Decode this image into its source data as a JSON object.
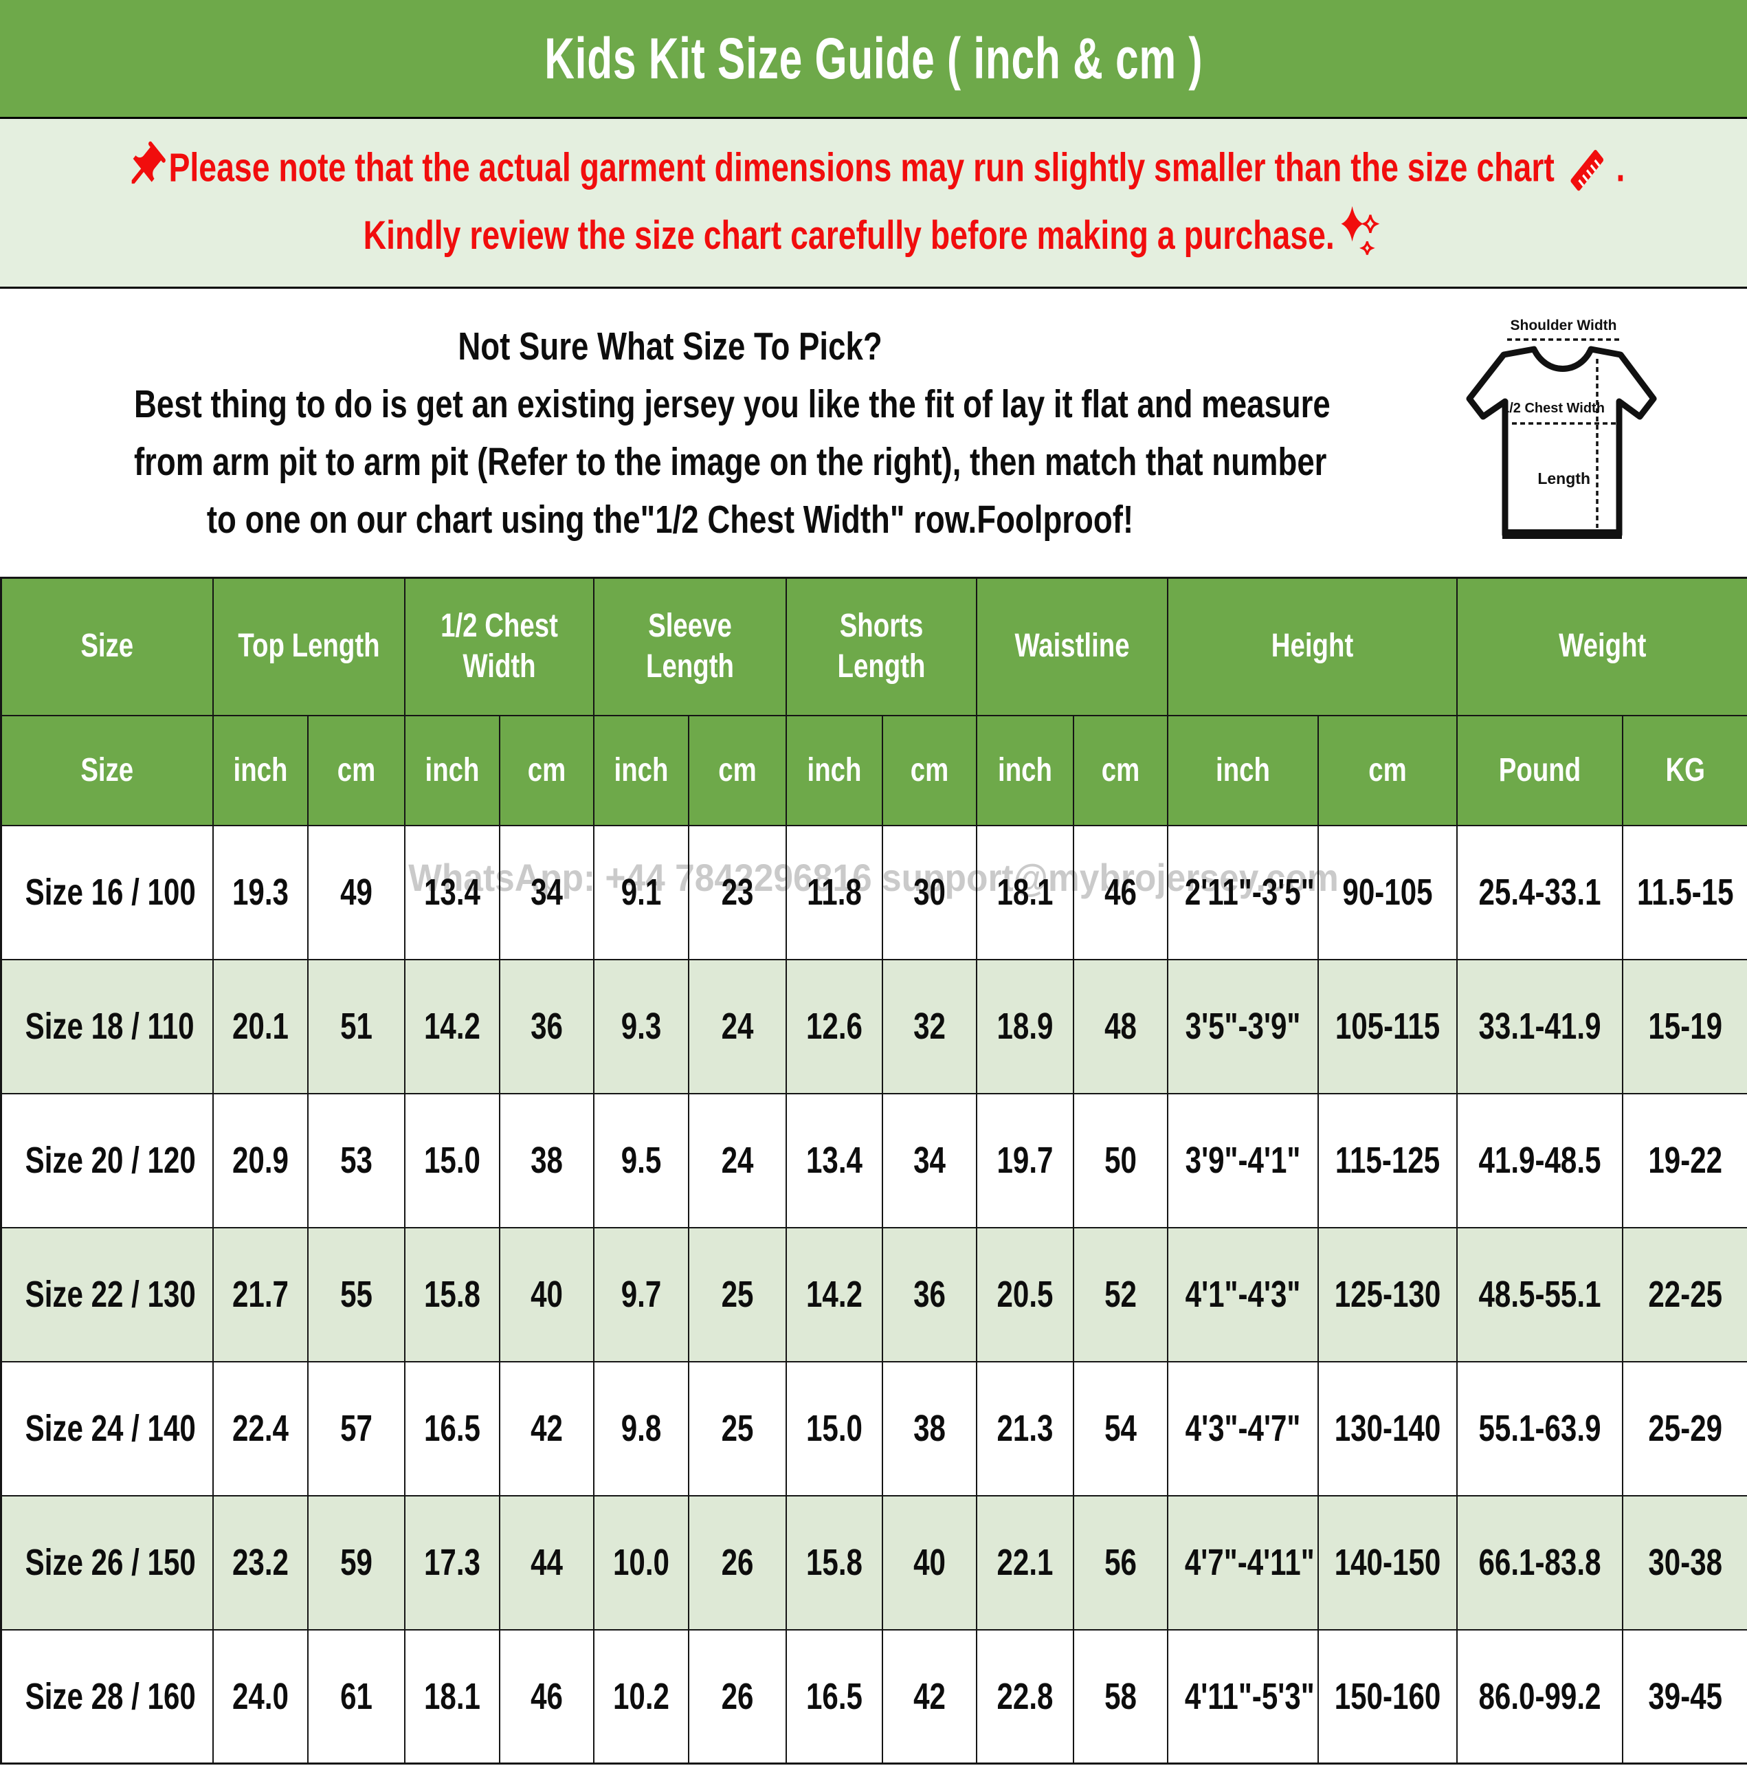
{
  "title": "Kids Kit Size Guide ( inch & cm )",
  "notice": {
    "line1": "Please note that the actual garment dimensions may run slightly smaller than the size chart",
    "line1_period": ".",
    "line2": "Kindly review the size chart carefully before making a purchase."
  },
  "sizing_help": {
    "line1": "Not Sure What Size To Pick?",
    "line2": "Best thing to do is get an existing jersey you like the fit of lay it flat and measure",
    "line3": "from arm pit to arm pit (Refer to the image on the right), then match that number",
    "line4": "to one on our chart using the\"1/2 Chest Width\" row.Foolproof!"
  },
  "diagram": {
    "shoulder_label": "Shoulder Width",
    "chest_label": "1/2 Chest Width",
    "length_label": "Length"
  },
  "watermark": "WhatsApp: +44 7842296816  support@mybrojersey.com",
  "table": {
    "groups": [
      "Size",
      "Top Length",
      "1/2 Chest Width",
      "Sleeve Length",
      "Shorts Length",
      "Waistline",
      "Height",
      "Weight"
    ],
    "units": [
      "Size",
      "inch",
      "cm",
      "inch",
      "cm",
      "inch",
      "cm",
      "inch",
      "cm",
      "inch",
      "cm",
      "inch",
      "cm",
      "Pound",
      "KG"
    ],
    "rows": [
      [
        "Size 16 / 100",
        "19.3",
        "49",
        "13.4",
        "34",
        "9.1",
        "23",
        "11.8",
        "30",
        "18.1",
        "46",
        "2'11\"-3'5\"",
        "90-105",
        "25.4-33.1",
        "11.5-15"
      ],
      [
        "Size 18 / 110",
        "20.1",
        "51",
        "14.2",
        "36",
        "9.3",
        "24",
        "12.6",
        "32",
        "18.9",
        "48",
        "3'5\"-3'9\"",
        "105-115",
        "33.1-41.9",
        "15-19"
      ],
      [
        "Size 20 / 120",
        "20.9",
        "53",
        "15.0",
        "38",
        "9.5",
        "24",
        "13.4",
        "34",
        "19.7",
        "50",
        "3'9\"-4'1\"",
        "115-125",
        "41.9-48.5",
        "19-22"
      ],
      [
        "Size 22 / 130",
        "21.7",
        "55",
        "15.8",
        "40",
        "9.7",
        "25",
        "14.2",
        "36",
        "20.5",
        "52",
        "4'1\"-4'3\"",
        "125-130",
        "48.5-55.1",
        "22-25"
      ],
      [
        "Size 24 / 140",
        "22.4",
        "57",
        "16.5",
        "42",
        "9.8",
        "25",
        "15.0",
        "38",
        "21.3",
        "54",
        "4'3\"-4'7\"",
        "130-140",
        "55.1-63.9",
        "25-29"
      ],
      [
        "Size 26 / 150",
        "23.2",
        "59",
        "17.3",
        "44",
        "10.0",
        "26",
        "15.8",
        "40",
        "22.1",
        "56",
        "4'7\"-4'11\"",
        "140-150",
        "66.1-83.8",
        "30-38"
      ],
      [
        "Size 28 / 160",
        "24.0",
        "61",
        "18.1",
        "46",
        "10.2",
        "26",
        "16.5",
        "42",
        "22.8",
        "58",
        "4'11\"-5'3\"",
        "150-160",
        "86.0-99.2",
        "39-45"
      ]
    ]
  },
  "colors": {
    "header_green": "#6ea94a",
    "notice_green": "#e4efdf",
    "row_green": "#dee9d6",
    "accent_red": "#f10d0d",
    "border_black": "#151515",
    "text_black": "#0d0d0d",
    "watermark_gray": "#bdbdbd"
  }
}
